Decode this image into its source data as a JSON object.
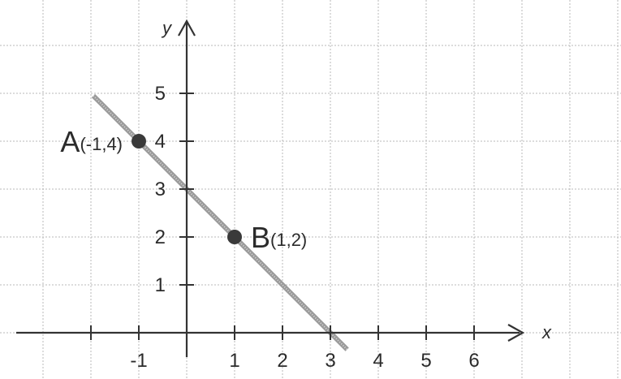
{
  "axes": {
    "x_label": "x",
    "y_label": "y",
    "x_ticks": [
      -2,
      -1,
      1,
      2,
      3,
      4,
      5,
      6
    ],
    "x_tick_labels": [
      "-1",
      "1",
      "2",
      "3",
      "4",
      "5",
      "6"
    ],
    "y_ticks": [
      1,
      2,
      3,
      4,
      5
    ],
    "y_tick_labels": [
      "1",
      "2",
      "3",
      "4",
      "5"
    ]
  },
  "line": {
    "slope": -1,
    "intercept": 3,
    "x_from": -1.95,
    "x_to": 3.35,
    "color": "#9a9a9a"
  },
  "points": [
    {
      "letter": "A",
      "coords": "(-1,4)",
      "x": -1,
      "y": 4
    },
    {
      "letter": "B",
      "coords": "(1,2)",
      "x": 1,
      "y": 2
    }
  ],
  "colors": {
    "axis": "#333333",
    "point": "#3a3a3a",
    "grid": "#b9b9b9"
  }
}
